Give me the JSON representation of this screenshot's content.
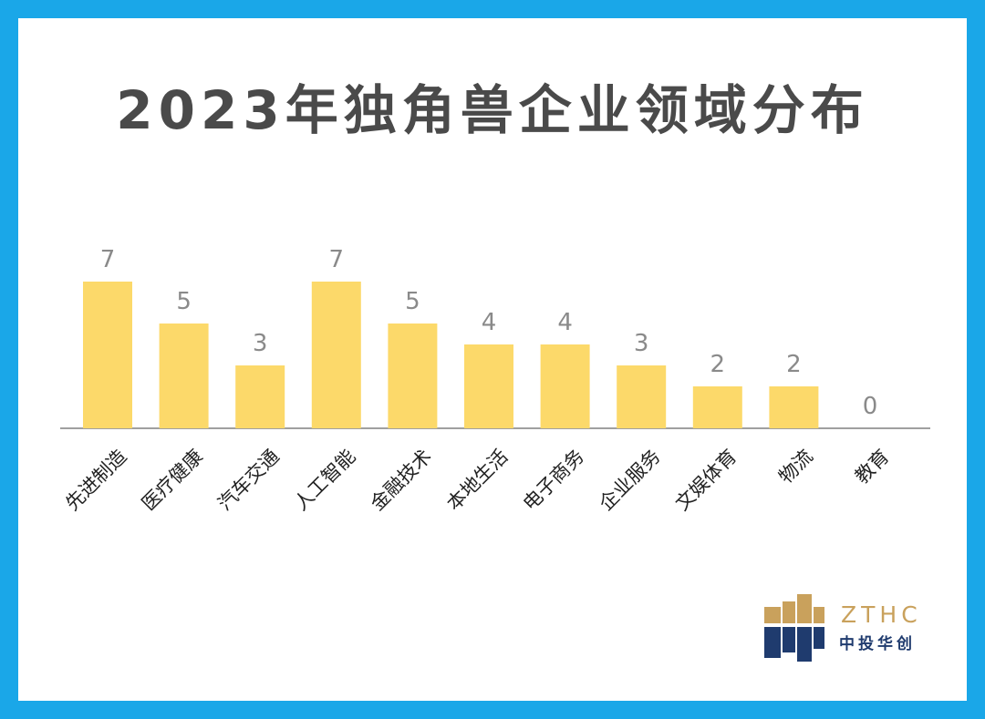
{
  "chart_data": {
    "type": "bar",
    "title": "2023年独角兽企业领域分布",
    "categories": [
      "先进制造",
      "医疗健康",
      "汽车交通",
      "人工智能",
      "金融技术",
      "本地生活",
      "电子商务",
      "企业服务",
      "文娱体育",
      "物流",
      "教育"
    ],
    "values": [
      7,
      5,
      3,
      7,
      5,
      4,
      4,
      3,
      2,
      2,
      0
    ],
    "xlabel": "",
    "ylabel": "",
    "grid": false,
    "legend": "none",
    "bar_color": "#fcd96a",
    "axis_color": "#a0a0a0"
  },
  "logo": {
    "text_en": "ZTHC",
    "text_cn": "中投华创",
    "gold": "#c9a15c",
    "navy": "#1f3b6e"
  },
  "colors": {
    "frame": "#1aa7e8",
    "background": "#ffffff",
    "title": "#4a4a4a"
  }
}
